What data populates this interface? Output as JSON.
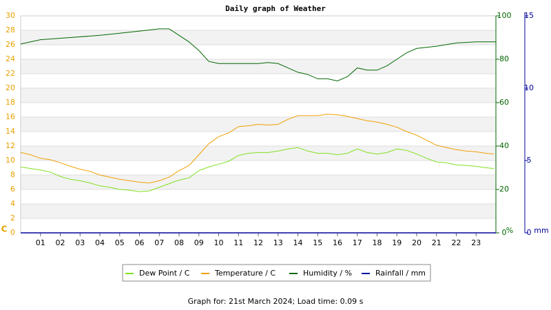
{
  "chart_data": {
    "type": "line",
    "title": "Daily graph of Weather",
    "footer": "Graph for: 21st March 2024; Load time: 0.09 s",
    "xlim": [
      0,
      24
    ],
    "xticks": [
      {
        "value": 1,
        "label": "01"
      },
      {
        "value": 2,
        "label": "02"
      },
      {
        "value": 3,
        "label": "03"
      },
      {
        "value": 4,
        "label": "04"
      },
      {
        "value": 5,
        "label": "05"
      },
      {
        "value": 6,
        "label": "06"
      },
      {
        "value": 7,
        "label": "07"
      },
      {
        "value": 8,
        "label": "08"
      },
      {
        "value": 9,
        "label": "09"
      },
      {
        "value": 10,
        "label": "10"
      },
      {
        "value": 11,
        "label": "11"
      },
      {
        "value": 12,
        "label": "12"
      },
      {
        "value": 13,
        "label": "13"
      },
      {
        "value": 14,
        "label": "14"
      },
      {
        "value": 15,
        "label": "15"
      },
      {
        "value": 16,
        "label": "16"
      },
      {
        "value": 17,
        "label": "17"
      },
      {
        "value": 18,
        "label": "18"
      },
      {
        "value": 19,
        "label": "19"
      },
      {
        "value": 20,
        "label": "20"
      },
      {
        "value": 21,
        "label": "21"
      },
      {
        "value": 22,
        "label": "22"
      },
      {
        "value": 23,
        "label": "23"
      }
    ],
    "y_label": "C",
    "y_color": "#e8a000",
    "ylim": [
      0,
      30
    ],
    "yticks": [
      0,
      2,
      4,
      6,
      8,
      10,
      12,
      14,
      16,
      18,
      20,
      22,
      24,
      26,
      28,
      30
    ],
    "y2_label": "%",
    "y2_color": "#006600",
    "y2lim": [
      0,
      100
    ],
    "y2ticks": [
      0,
      20,
      40,
      60,
      80,
      100
    ],
    "y3_label": "mm",
    "y3_color": "#000099",
    "y3lim": [
      0,
      15
    ],
    "y3ticks": [
      0,
      5,
      10,
      15
    ],
    "grid": true,
    "series": [
      {
        "name": "Dew Point / C",
        "color": "#80e020",
        "axis": "y",
        "x": [
          0,
          0.5,
          1,
          1.5,
          2,
          2.5,
          3,
          3.5,
          4,
          4.5,
          5,
          5.5,
          6,
          6.5,
          7,
          7.5,
          8,
          8.5,
          9,
          9.5,
          10,
          10.5,
          11,
          11.5,
          12,
          12.5,
          13,
          13.5,
          14,
          14.5,
          15,
          15.5,
          16,
          16.5,
          17,
          17.5,
          18,
          18.5,
          19,
          19.5,
          20,
          20.5,
          21,
          21.5,
          22,
          22.5,
          23,
          23.5,
          23.9
        ],
        "values": [
          9.1,
          8.9,
          8.7,
          8.4,
          7.8,
          7.4,
          7.2,
          6.9,
          6.5,
          6.3,
          6.0,
          5.9,
          5.7,
          5.8,
          6.3,
          6.8,
          7.3,
          7.6,
          8.6,
          9.1,
          9.5,
          9.9,
          10.7,
          11.0,
          11.1,
          11.1,
          11.3,
          11.6,
          11.8,
          11.3,
          11.0,
          11.0,
          10.8,
          11.0,
          11.6,
          11.1,
          10.9,
          11.1,
          11.6,
          11.4,
          10.9,
          10.3,
          9.8,
          9.7,
          9.4,
          9.3,
          9.2,
          9.0,
          8.9
        ]
      },
      {
        "name": "Temperature / C",
        "color": "#f0a000",
        "axis": "y",
        "x": [
          0,
          0.5,
          1,
          1.5,
          2,
          2.5,
          3,
          3.5,
          4,
          4.5,
          5,
          5.5,
          6,
          6.5,
          7,
          7.5,
          8,
          8.5,
          9,
          9.5,
          10,
          10.5,
          11,
          11.5,
          12,
          12.5,
          13,
          13.5,
          14,
          14.5,
          15,
          15.5,
          16,
          16.5,
          17,
          17.5,
          18,
          18.5,
          19,
          19.5,
          20,
          20.5,
          21,
          21.5,
          22,
          22.5,
          23,
          23.5,
          23.9
        ],
        "values": [
          11.1,
          10.8,
          10.3,
          10.1,
          9.7,
          9.2,
          8.8,
          8.5,
          8.0,
          7.7,
          7.4,
          7.2,
          7.0,
          6.9,
          7.2,
          7.7,
          8.6,
          9.3,
          10.8,
          12.3,
          13.3,
          13.8,
          14.7,
          14.8,
          15.0,
          14.9,
          15.0,
          15.7,
          16.2,
          16.2,
          16.2,
          16.4,
          16.3,
          16.1,
          15.8,
          15.5,
          15.3,
          15.0,
          14.6,
          14.0,
          13.5,
          12.8,
          12.1,
          11.8,
          11.5,
          11.3,
          11.2,
          11.0,
          10.9
        ]
      },
      {
        "name": "Humidity / %",
        "color": "#006600",
        "axis": "y2",
        "x": [
          0,
          1,
          2.5,
          4,
          5,
          6,
          7,
          7.5,
          8,
          8.5,
          9,
          9.5,
          10,
          11,
          12,
          12.5,
          13,
          13.5,
          14,
          14.5,
          15,
          15.5,
          16,
          16.5,
          17,
          17.5,
          18,
          18.5,
          19,
          19.5,
          20,
          21,
          22,
          23,
          24
        ],
        "values": [
          87,
          89,
          90,
          91,
          92,
          93,
          94,
          94,
          91,
          88,
          84,
          79,
          78,
          78,
          78,
          78.5,
          78,
          76,
          74,
          73,
          71,
          71,
          70,
          72,
          76,
          75,
          75,
          77,
          80,
          83,
          85,
          86,
          87.5,
          88,
          88
        ]
      },
      {
        "name": "Rainfall / mm",
        "color": "#0000a0",
        "axis": "y3",
        "x": [
          0,
          24
        ],
        "values": [
          0,
          0
        ]
      }
    ]
  }
}
